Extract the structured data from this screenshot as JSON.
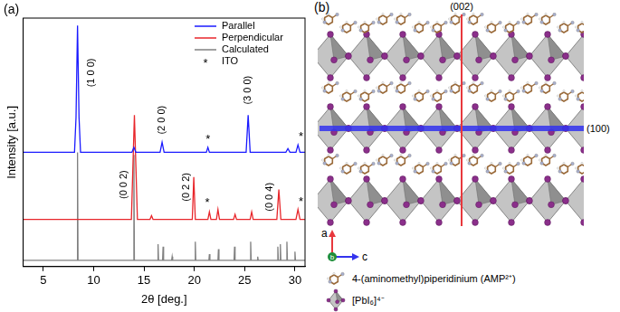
{
  "chart_data": {
    "type": "line",
    "panel_label": "(a)",
    "x_label": "2θ [deg.]",
    "y_label": "Intensity [a.u.]",
    "xlim": [
      3,
      31
    ],
    "xticks": [
      5,
      10,
      15,
      20,
      25,
      30
    ],
    "ylim": [
      0,
      100
    ],
    "tick_labels": "x",
    "grid": false,
    "legend": "upper right",
    "legend_extra": {
      "symbol": "*",
      "label": "ITO"
    },
    "series": [
      {
        "name": "Parallel",
        "color": "#1a1aff",
        "x": [
          3,
          8.1,
          8.25,
          8.4,
          8.55,
          8.7,
          13.8,
          14.0,
          14.2,
          16.6,
          16.8,
          17.0,
          21.2,
          21.35,
          21.5,
          25.15,
          25.35,
          25.55,
          29.1,
          29.3,
          29.5,
          30.1,
          30.3,
          30.5,
          31
        ],
        "values": [
          46,
          46,
          60,
          97,
          60,
          46,
          46,
          48,
          46,
          46,
          50,
          46,
          46,
          48,
          46,
          46,
          61,
          46,
          46,
          47.5,
          46,
          46,
          49,
          46,
          46
        ]
      },
      {
        "name": "Perpendicular",
        "color": "#e8262b",
        "x": [
          3,
          13.75,
          13.9,
          14.05,
          14.2,
          14.35,
          15.6,
          15.75,
          15.9,
          19.8,
          19.95,
          20.1,
          21.35,
          21.5,
          21.65,
          22.2,
          22.35,
          22.5,
          23.9,
          24.05,
          24.2,
          25.55,
          25.7,
          25.85,
          28.2,
          28.4,
          28.6,
          30.1,
          30.3,
          30.5,
          31
        ],
        "values": [
          19,
          19,
          40,
          61,
          40,
          19,
          19,
          20.5,
          19,
          19,
          36,
          19,
          19,
          22,
          19,
          19,
          23,
          19,
          19,
          21,
          19,
          19,
          22,
          19,
          19,
          31,
          19,
          19,
          23,
          19,
          19
        ]
      },
      {
        "name": "Calculated",
        "color": "#808080",
        "x": [
          3,
          8.35,
          8.4,
          8.45,
          13.95,
          14.0,
          14.05,
          16.35,
          16.4,
          16.45,
          16.85,
          16.9,
          16.95,
          17.75,
          17.8,
          17.85,
          20.05,
          20.1,
          20.15,
          21.45,
          21.5,
          21.55,
          22.35,
          22.4,
          22.45,
          23.95,
          24.0,
          24.05,
          25.55,
          25.6,
          25.65,
          26.25,
          26.3,
          26.35,
          28.25,
          28.3,
          28.35,
          28.5,
          28.55,
          28.6,
          29.15,
          29.2,
          29.25,
          29.95,
          30.0,
          30.05,
          31
        ],
        "values": [
          2.5,
          2.5,
          46,
          2.5,
          2.5,
          45,
          2.5,
          2.5,
          9,
          2.5,
          2.5,
          8,
          2.5,
          2.5,
          4,
          2.5,
          2.5,
          10,
          2.5,
          2.5,
          5,
          2.5,
          2.5,
          7,
          2.5,
          2.5,
          8,
          2.5,
          2.5,
          10,
          2.5,
          2.5,
          4,
          2.5,
          2.5,
          8,
          2.5,
          2.5,
          9,
          2.5,
          2.5,
          10,
          2.5,
          2.5,
          6,
          2.5,
          2.5
        ]
      }
    ],
    "annotations": [
      {
        "text": "(1 0 0)",
        "x": 9.8,
        "y": 78
      },
      {
        "text": "(2 0 0)",
        "x": 16.8,
        "y": 59
      },
      {
        "text": "(3 0 0)",
        "x": 25.3,
        "y": 71
      },
      {
        "text": "(0 0 2)",
        "x": 13.0,
        "y": 33
      },
      {
        "text": "(0 2 2)",
        "x": 19.2,
        "y": 32
      },
      {
        "text": "(0 0 4)",
        "x": 27.5,
        "y": 28
      },
      {
        "text": "*",
        "x": 21.35,
        "y": 51
      },
      {
        "text": "*",
        "x": 30.6,
        "y": 52
      },
      {
        "text": "*",
        "x": 21.3,
        "y": 25.5
      },
      {
        "text": "*",
        "x": 30.6,
        "y": 26
      }
    ]
  },
  "diagram": {
    "panel_label": "(b)",
    "planes": [
      {
        "label": "(002)",
        "color": "#e8383d"
      },
      {
        "label": "(100)",
        "color": "#3333ee"
      }
    ],
    "axes": [
      {
        "label": "a",
        "color": "#e8383d"
      },
      {
        "label": "b",
        "color": "#1f8f3a"
      },
      {
        "label": "c",
        "color": "#3333ee"
      }
    ],
    "key": [
      {
        "label": "4-(aminomethyl)piperidinium (AMP²⁺)"
      },
      {
        "label": "[PbI₆]⁴⁻"
      }
    ]
  }
}
